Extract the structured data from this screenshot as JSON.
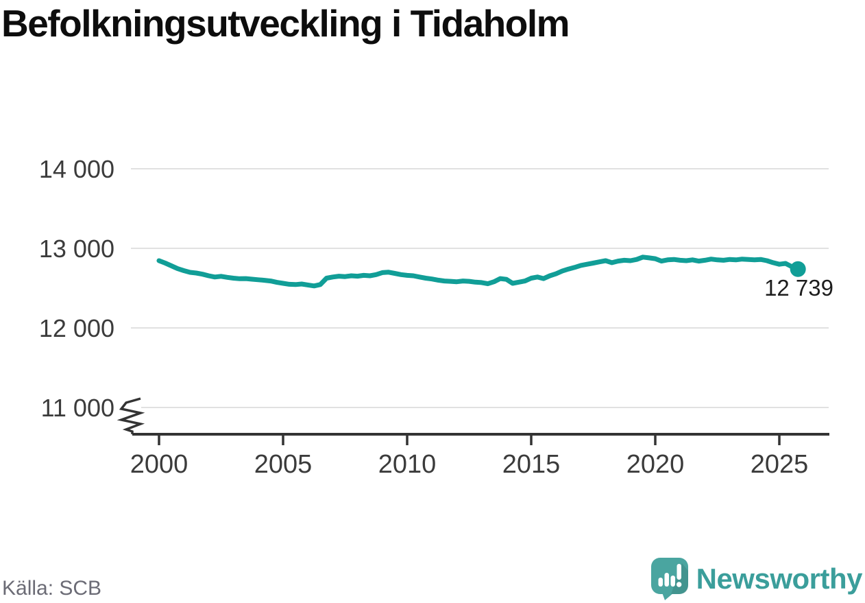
{
  "title": "Befolkningsutveckling i Tidaholm",
  "source": "Källa: SCB",
  "brand": "Newsworthy",
  "annotation": "12 739",
  "colors": {
    "line": "#119e97",
    "brand_text": "#3b9e9b",
    "logo_icon": "#4aa5a0",
    "grid": "#e1e1e1",
    "axis": "#333333",
    "tick_text": "#3b3b3b",
    "title_text": "#0d0d0d",
    "annotation_text": "#1d1d1d",
    "muted_text": "#6b6b75"
  },
  "chart_data": {
    "type": "line",
    "title": "Befolkningsutveckling i Tidaholm",
    "xlabel": "",
    "ylabel": "",
    "grid": true,
    "legend": false,
    "axis_break": true,
    "x_start": 2000,
    "x_step": 0.25,
    "x_end": 2025.75,
    "xticks": [
      2000,
      2005,
      2010,
      2015,
      2020,
      2025
    ],
    "yticks": [
      {
        "value": 11000,
        "label": "11 000"
      },
      {
        "value": 12000,
        "label": "12 000"
      },
      {
        "value": 13000,
        "label": "13 000"
      },
      {
        "value": 14000,
        "label": "14 000"
      }
    ],
    "ylim": [
      10800,
      14300
    ],
    "last_point": {
      "x": 2025.75,
      "y": 12739,
      "label": "12 739"
    },
    "series": [
      {
        "name": "Befolkning",
        "values": [
          12845,
          12815,
          12780,
          12745,
          12720,
          12698,
          12690,
          12675,
          12655,
          12640,
          12648,
          12635,
          12625,
          12618,
          12620,
          12612,
          12605,
          12598,
          12590,
          12572,
          12560,
          12548,
          12545,
          12552,
          12540,
          12528,
          12545,
          12625,
          12640,
          12650,
          12645,
          12655,
          12650,
          12660,
          12655,
          12670,
          12695,
          12700,
          12685,
          12670,
          12660,
          12655,
          12640,
          12625,
          12615,
          12600,
          12590,
          12585,
          12580,
          12590,
          12585,
          12575,
          12570,
          12555,
          12580,
          12620,
          12610,
          12560,
          12575,
          12590,
          12625,
          12640,
          12620,
          12655,
          12680,
          12715,
          12740,
          12760,
          12785,
          12800,
          12815,
          12830,
          12845,
          12820,
          12840,
          12850,
          12845,
          12860,
          12890,
          12880,
          12870,
          12840,
          12855,
          12860,
          12850,
          12845,
          12855,
          12840,
          12850,
          12865,
          12855,
          12850,
          12860,
          12855,
          12865,
          12860,
          12855,
          12860,
          12845,
          12820,
          12800,
          12810,
          12770,
          12739
        ]
      }
    ]
  }
}
